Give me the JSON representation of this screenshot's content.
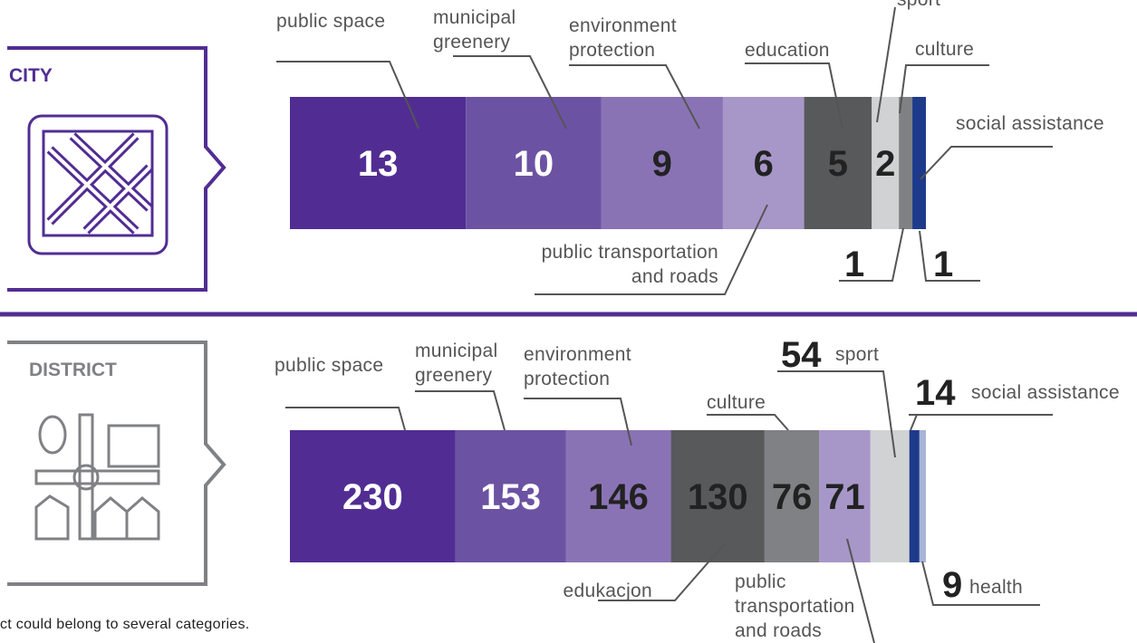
{
  "chart_data": [
    {
      "type": "stacked-bar",
      "title": "CITY",
      "categories": [
        "public space",
        "municipal greenery",
        "environment protection",
        "public transportation and roads",
        "education",
        "sport",
        "culture",
        "social assistance"
      ],
      "values": [
        13,
        10,
        9,
        6,
        5,
        2,
        1,
        1
      ],
      "colors": [
        "#512d93",
        "#6c52a3",
        "#8a73b5",
        "#a797c9",
        "#58595b",
        "#d1d2d4",
        "#808184",
        "#1e3a8a"
      ]
    },
    {
      "type": "stacked-bar",
      "title": "DISTRICT",
      "categories": [
        "public space",
        "municipal greenery",
        "environment protection",
        "edukacjon",
        "culture",
        "public transportation and roads",
        "sport",
        "social assistance",
        "health"
      ],
      "values": [
        230,
        153,
        146,
        130,
        76,
        71,
        54,
        14,
        9
      ],
      "colors": [
        "#512d93",
        "#6c52a3",
        "#8a73b5",
        "#58595b",
        "#808184",
        "#a797c9",
        "#d1d2d4",
        "#1e3a8a",
        "#a9b4d6"
      ]
    }
  ],
  "footnote": "ct could belong to several categories."
}
